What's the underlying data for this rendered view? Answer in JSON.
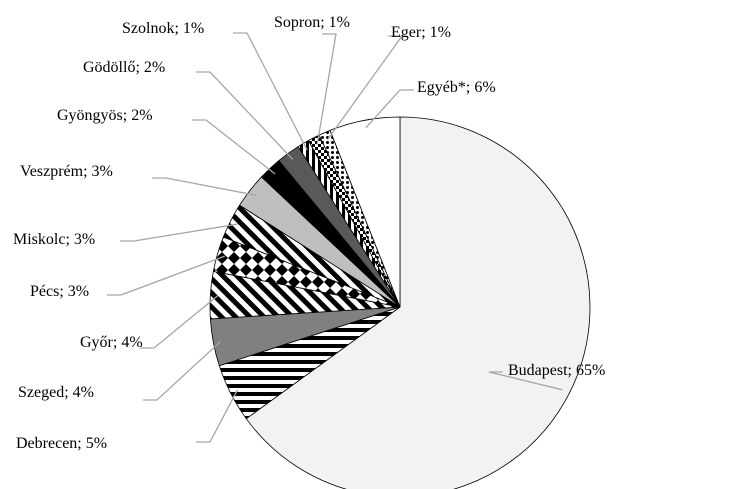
{
  "chart_data": {
    "type": "pie",
    "categories": [
      "Budapest",
      "Debrecen",
      "Szeged",
      "Győr",
      "Pécs",
      "Miskolc",
      "Veszprém",
      "Gyöngyös",
      "Gödöllő",
      "Szolnok",
      "Sopron",
      "Eger",
      "Egyéb*"
    ],
    "values": [
      65,
      5,
      4,
      4,
      3,
      3,
      3,
      2,
      2,
      1,
      1,
      1,
      6
    ],
    "value_labels": [
      "; 65%",
      "; 5%",
      "; 4%",
      "; 4%",
      "; 3%",
      "; 3%",
      "; 3%",
      "; 2%",
      "; 2%",
      "; 1%",
      "; 1%",
      "; 1%",
      "; 6%"
    ],
    "colors": [
      "#f2f2f2",
      "#000000",
      "#808080",
      "#000000",
      "#000000",
      "#000000",
      "#bfbfbf",
      "#000000",
      "#595959",
      "#000000",
      "#000000",
      "#000000",
      "#ffffff"
    ],
    "patterns": [
      null,
      "horizontal-stripes",
      null,
      "diagonal-stripes",
      "diamonds",
      "diagonal-stripes",
      null,
      null,
      null,
      "vertical-stripes",
      "checker",
      "dots",
      null
    ]
  }
}
